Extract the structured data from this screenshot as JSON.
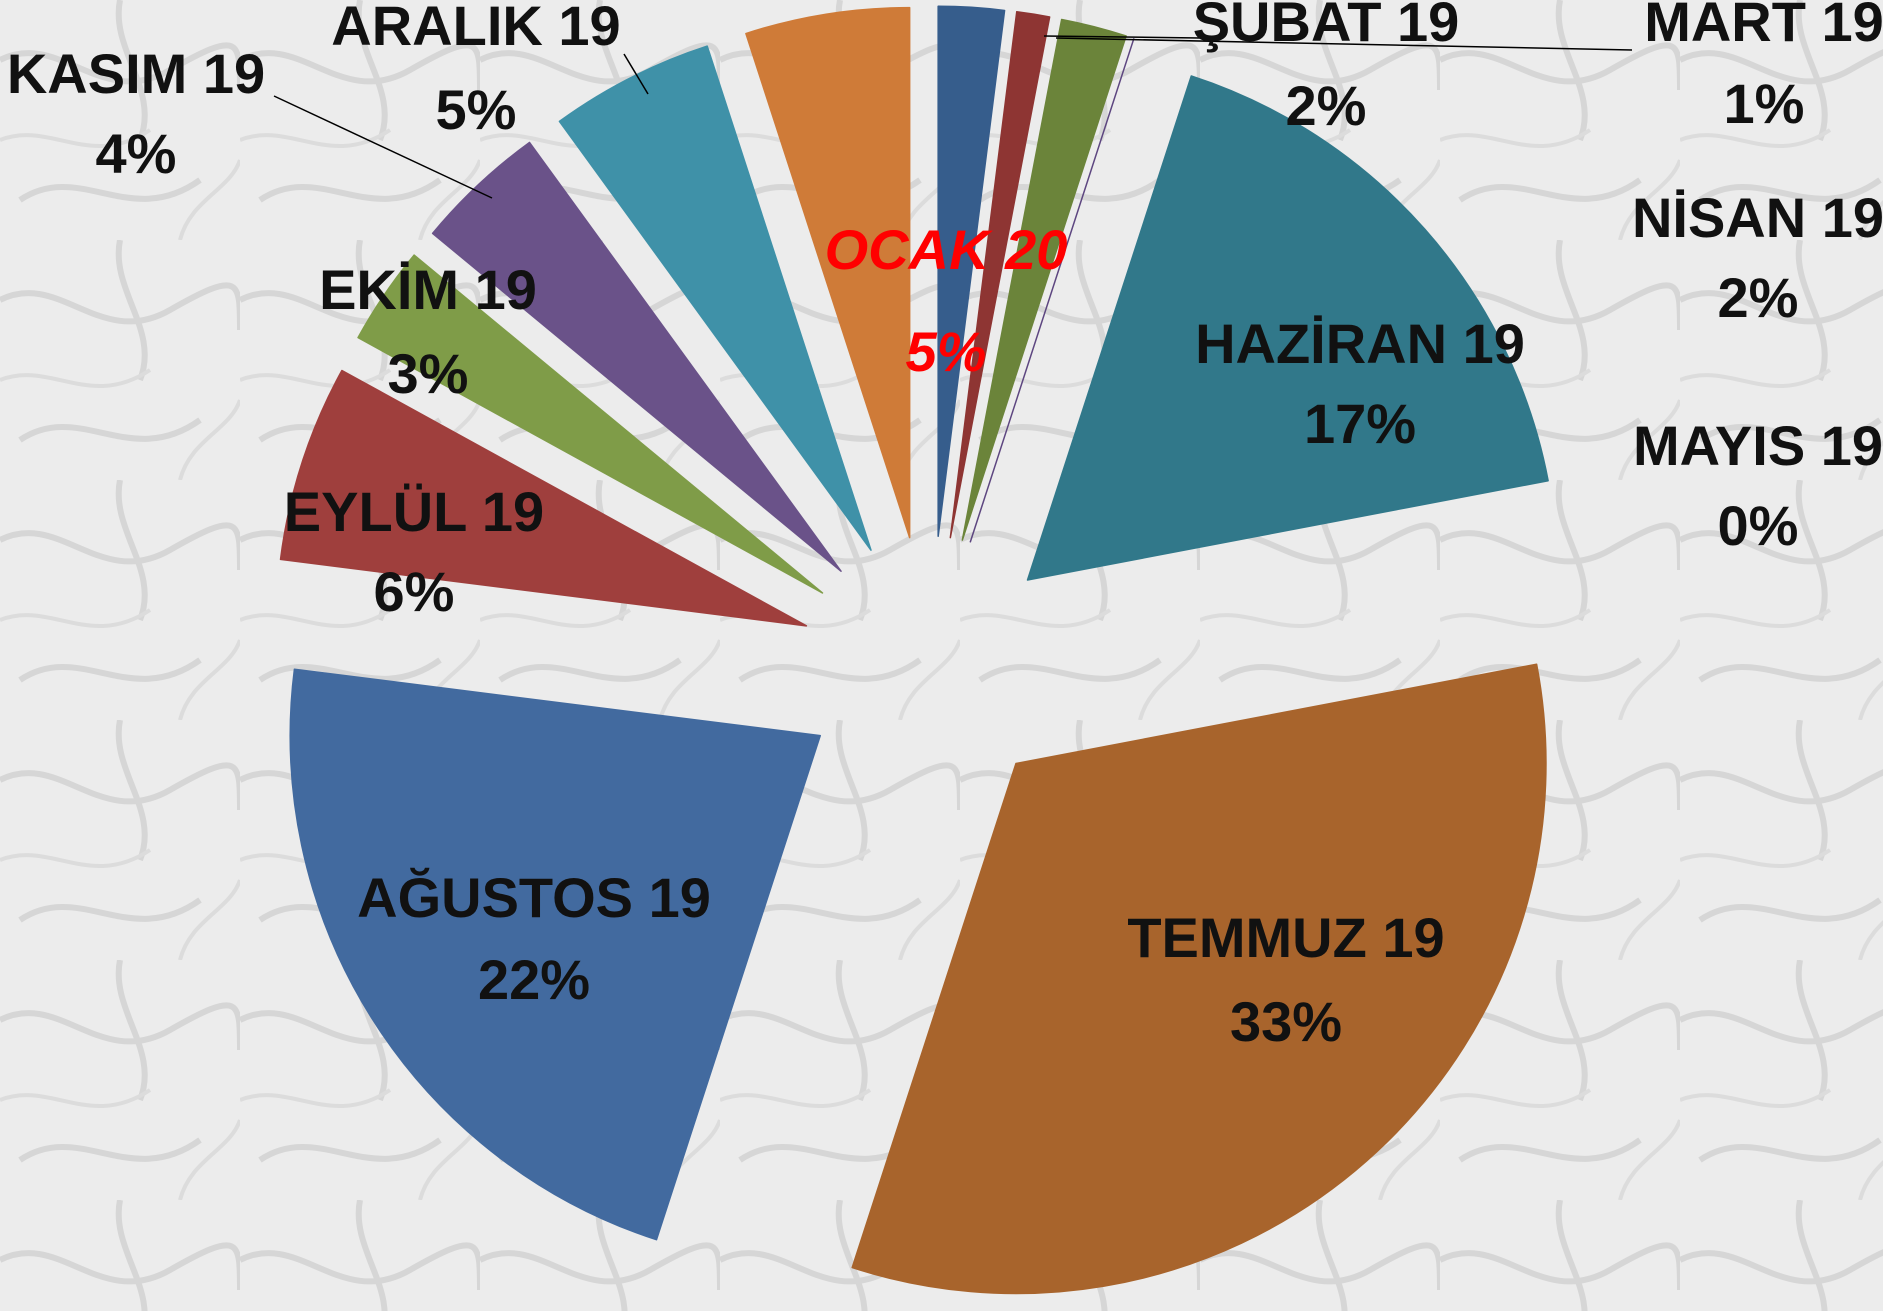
{
  "chart_data": {
    "type": "pie",
    "categories": [
      "ŞUBAT 19",
      "MART 19",
      "NİSAN 19",
      "MAYIS 19",
      "HAZİRAN 19",
      "TEMMUZ 19",
      "AĞUSTOS 19",
      "EYLÜL 19",
      "EKİM 19",
      "KASIM 19",
      "ARALIK 19",
      "OCAK 20"
    ],
    "values": [
      2,
      1,
      2,
      0,
      17,
      33,
      22,
      6,
      3,
      4,
      5,
      5
    ],
    "value_labels": [
      "2%",
      "1%",
      "2%",
      "0%",
      "17%",
      "33%",
      "22%",
      "6%",
      "3%",
      "4%",
      "5%",
      "5%"
    ],
    "colors": [
      "#365d8c",
      "#8e3533",
      "#6b843a",
      "#5d4680",
      "#31788a",
      "#a8642c",
      "#426a9f",
      "#9f3f3d",
      "#7f9c48",
      "#6a5289",
      "#3f91a8",
      "#cf7b38"
    ]
  }
}
